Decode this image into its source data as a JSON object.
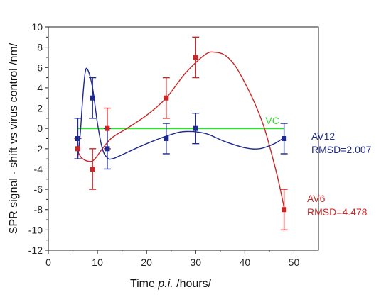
{
  "chart_data": {
    "type": "scatter",
    "title": "",
    "xlabel_pre": "Time ",
    "xlabel_em": "p.i.",
    "xlabel_post": " /hours/",
    "ylabel": "SPR signal - shift vs virus control /nm/",
    "xlim": [
      0,
      55
    ],
    "ylim": [
      -12,
      10
    ],
    "xticks": [
      0,
      10,
      20,
      30,
      40,
      50
    ],
    "yticks": [
      -12,
      -10,
      -8,
      -6,
      -4,
      -2,
      0,
      2,
      4,
      6,
      8,
      10
    ],
    "grid": false,
    "series": [
      {
        "key": "vc",
        "name": "VC",
        "color": "#33dd33",
        "x": [
          6,
          48
        ],
        "y": [
          0,
          0
        ],
        "marker": "none"
      },
      {
        "key": "av6",
        "name": "AV6",
        "annotation": "RMSD=4.478",
        "color": "#c62828",
        "x": [
          6,
          9,
          12,
          24,
          30,
          48
        ],
        "y": [
          -2,
          -4,
          0,
          3,
          7,
          -8
        ],
        "err": [
          1,
          2,
          2,
          2,
          2,
          2
        ],
        "fit": [
          [
            6,
            -2.3
          ],
          [
            7,
            -3.0
          ],
          [
            9,
            -3.2
          ],
          [
            11,
            -2.0
          ],
          [
            13,
            -0.9
          ],
          [
            16,
            0.0
          ],
          [
            20,
            1.3
          ],
          [
            24,
            3.0
          ],
          [
            28,
            5.5
          ],
          [
            32,
            7.3
          ],
          [
            34,
            7.5
          ],
          [
            36,
            7.2
          ],
          [
            38,
            6.2
          ],
          [
            40,
            4.5
          ],
          [
            42,
            2.5
          ],
          [
            44,
            0.0
          ],
          [
            46,
            -3.5
          ],
          [
            47,
            -5.5
          ],
          [
            48,
            -7.8
          ]
        ]
      },
      {
        "key": "av12",
        "name": "AV12",
        "annotation": "RMSD=2.007",
        "color": "#1e2a8c",
        "x": [
          6,
          9,
          12,
          24,
          30,
          48
        ],
        "y": [
          -1,
          3,
          -2,
          -1,
          0,
          -1
        ],
        "err": [
          2,
          2,
          2,
          1.5,
          1.5,
          1.5
        ],
        "fit": [
          [
            6,
            -2.8
          ],
          [
            6.5,
            -0.5
          ],
          [
            7,
            3.0
          ],
          [
            7.5,
            5.5
          ],
          [
            8,
            5.8
          ],
          [
            9,
            4.0
          ],
          [
            10,
            0.5
          ],
          [
            11,
            -2.0
          ],
          [
            12,
            -2.9
          ],
          [
            13,
            -3.0
          ],
          [
            15,
            -2.6
          ],
          [
            20,
            -1.5
          ],
          [
            25,
            -0.6
          ],
          [
            28,
            -0.3
          ],
          [
            32,
            -0.5
          ],
          [
            36,
            -1.3
          ],
          [
            40,
            -1.9
          ],
          [
            43,
            -2.0
          ],
          [
            46,
            -1.5
          ],
          [
            48,
            -0.9
          ]
        ]
      }
    ]
  },
  "colors": {
    "background": "#ffffff",
    "axis": "#222222"
  }
}
